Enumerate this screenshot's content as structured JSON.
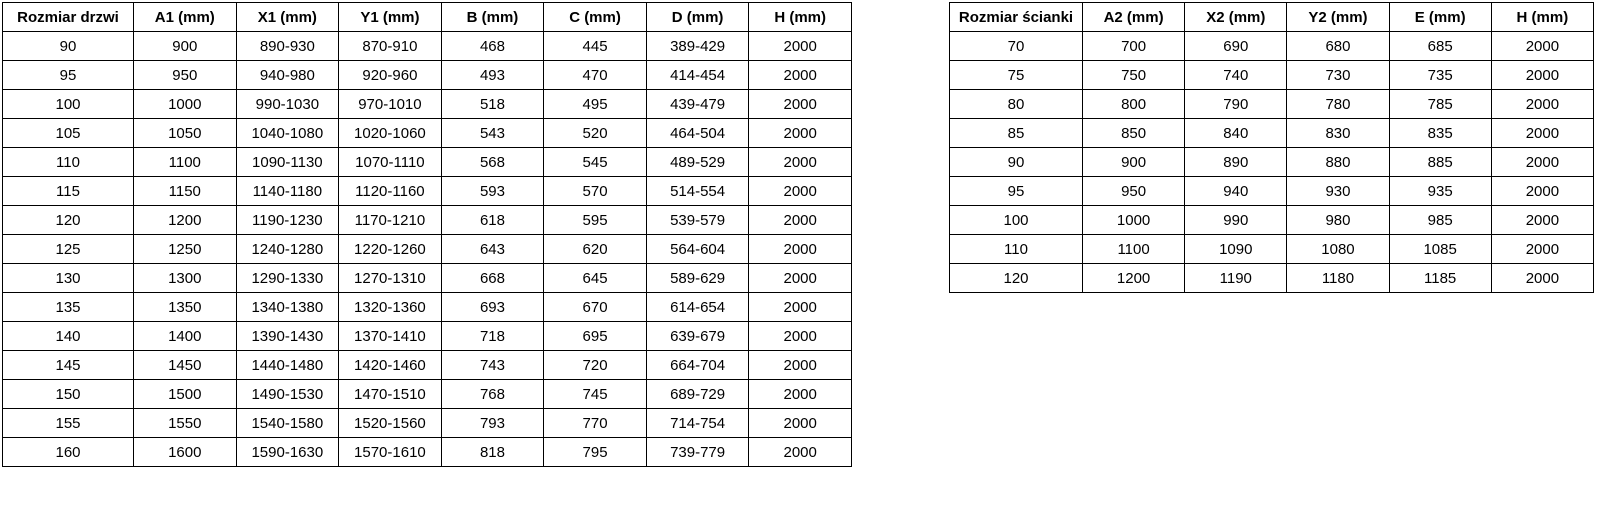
{
  "tables": {
    "door": {
      "name": "Rozmiar drzwi",
      "headers": [
        "Rozmiar drzwi",
        "A1 (mm)",
        "X1 (mm)",
        "Y1 (mm)",
        "B (mm)",
        "C (mm)",
        "D (mm)",
        "H (mm)"
      ],
      "rows": [
        [
          "90",
          "900",
          "890-930",
          "870-910",
          "468",
          "445",
          "389-429",
          "2000"
        ],
        [
          "95",
          "950",
          "940-980",
          "920-960",
          "493",
          "470",
          "414-454",
          "2000"
        ],
        [
          "100",
          "1000",
          "990-1030",
          "970-1010",
          "518",
          "495",
          "439-479",
          "2000"
        ],
        [
          "105",
          "1050",
          "1040-1080",
          "1020-1060",
          "543",
          "520",
          "464-504",
          "2000"
        ],
        [
          "110",
          "1100",
          "1090-1130",
          "1070-1110",
          "568",
          "545",
          "489-529",
          "2000"
        ],
        [
          "115",
          "1150",
          "1140-1180",
          "1120-1160",
          "593",
          "570",
          "514-554",
          "2000"
        ],
        [
          "120",
          "1200",
          "1190-1230",
          "1170-1210",
          "618",
          "595",
          "539-579",
          "2000"
        ],
        [
          "125",
          "1250",
          "1240-1280",
          "1220-1260",
          "643",
          "620",
          "564-604",
          "2000"
        ],
        [
          "130",
          "1300",
          "1290-1330",
          "1270-1310",
          "668",
          "645",
          "589-629",
          "2000"
        ],
        [
          "135",
          "1350",
          "1340-1380",
          "1320-1360",
          "693",
          "670",
          "614-654",
          "2000"
        ],
        [
          "140",
          "1400",
          "1390-1430",
          "1370-1410",
          "718",
          "695",
          "639-679",
          "2000"
        ],
        [
          "145",
          "1450",
          "1440-1480",
          "1420-1460",
          "743",
          "720",
          "664-704",
          "2000"
        ],
        [
          "150",
          "1500",
          "1490-1530",
          "1470-1510",
          "768",
          "745",
          "689-729",
          "2000"
        ],
        [
          "155",
          "1550",
          "1540-1580",
          "1520-1560",
          "793",
          "770",
          "714-754",
          "2000"
        ],
        [
          "160",
          "1600",
          "1590-1630",
          "1570-1610",
          "818",
          "795",
          "739-779",
          "2000"
        ]
      ]
    },
    "wall": {
      "name": "Rozmiar ścianki",
      "headers": [
        "Rozmiar ścianki",
        "A2 (mm)",
        "X2 (mm)",
        "Y2 (mm)",
        "E (mm)",
        "H (mm)"
      ],
      "rows": [
        [
          "70",
          "700",
          "690",
          "680",
          "685",
          "2000"
        ],
        [
          "75",
          "750",
          "740",
          "730",
          "735",
          "2000"
        ],
        [
          "80",
          "800",
          "790",
          "780",
          "785",
          "2000"
        ],
        [
          "85",
          "850",
          "840",
          "830",
          "835",
          "2000"
        ],
        [
          "90",
          "900",
          "890",
          "880",
          "885",
          "2000"
        ],
        [
          "95",
          "950",
          "940",
          "930",
          "935",
          "2000"
        ],
        [
          "100",
          "1000",
          "990",
          "980",
          "985",
          "2000"
        ],
        [
          "110",
          "1100",
          "1090",
          "1080",
          "1085",
          "2000"
        ],
        [
          "120",
          "1200",
          "1190",
          "1180",
          "1185",
          "2000"
        ]
      ]
    },
    "colors": {
      "border": "#000000",
      "background": "#ffffff",
      "text": "#000000"
    }
  }
}
